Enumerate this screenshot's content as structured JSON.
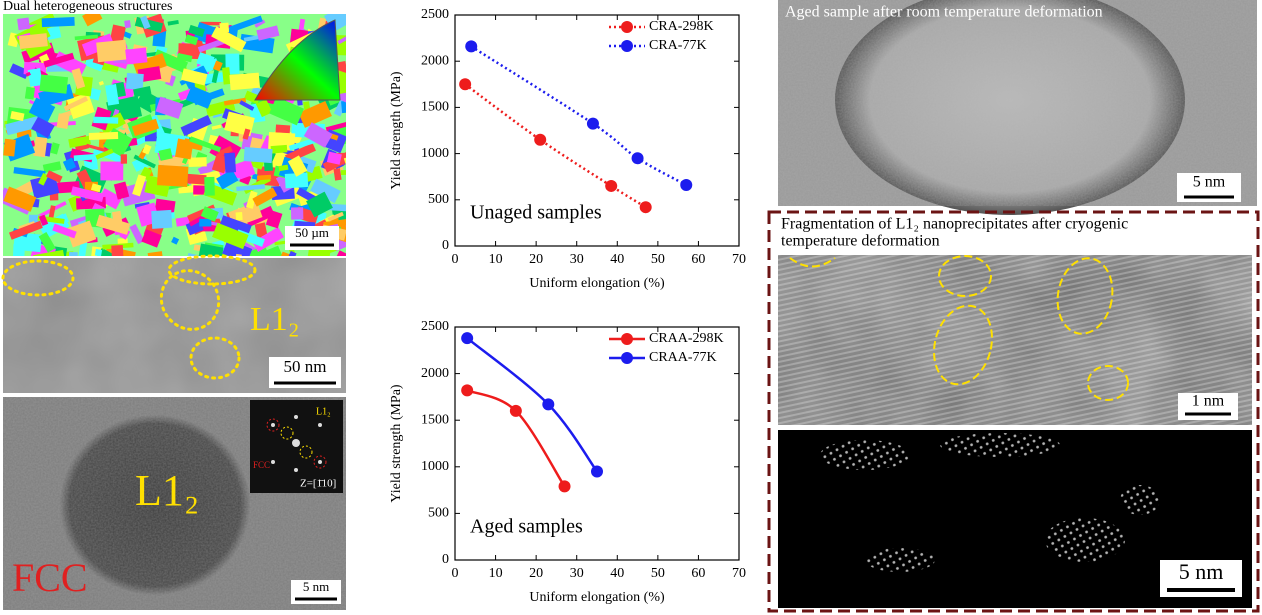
{
  "panels": {
    "ebsd_title": "Dual heterogeneous structures",
    "ebsd_scale": "50 µm",
    "tem_label": "L1₂",
    "tem_scale": "50 nm",
    "hr_label": "L1₂",
    "hr_fcc": "FCC",
    "hr_scale": "5 nm",
    "saed_l12": "L1₂",
    "saed_fcc": "FCC",
    "saed_zone": "Z=[1̄10]",
    "rt_caption": "Aged sample after room temperature deformation",
    "rt_scale": "5 nm",
    "cryo_caption_lines": [
      "Fragmentation of L1₂ nanoprecipitates after cryogenic",
      "temperature deformation"
    ],
    "cryo_scale": "1 nm",
    "fft_scale": "5 nm"
  },
  "chart_data": [
    {
      "type": "line",
      "annotation": "Unaged samples",
      "xlabel": "Uniform elongation (%)",
      "ylabel": "Yield strength (MPa)",
      "xlim": [
        0,
        70
      ],
      "xticks": [
        0,
        10,
        20,
        30,
        40,
        50,
        60,
        70
      ],
      "ylim": [
        0,
        2500
      ],
      "yticks": [
        0,
        500,
        1000,
        1500,
        2000,
        2500
      ],
      "line_style": "dotted",
      "legend": "upper right",
      "series": [
        {
          "name": "CRA-298K",
          "color": "#ee1c1c",
          "x": [
            2.5,
            21,
            38.5,
            47
          ],
          "values": [
            1750,
            1150,
            650,
            420
          ]
        },
        {
          "name": "CRA-77K",
          "color": "#1c1cee",
          "x": [
            4,
            34,
            45,
            57
          ],
          "values": [
            2160,
            1325,
            950,
            660
          ]
        }
      ]
    },
    {
      "type": "line",
      "annotation": "Aged samples",
      "xlabel": "Uniform elongation (%)",
      "ylabel": "Yield strength (MPa)",
      "xlim": [
        0,
        70
      ],
      "xticks": [
        0,
        10,
        20,
        30,
        40,
        50,
        60,
        70
      ],
      "ylim": [
        0,
        2500
      ],
      "yticks": [
        0,
        500,
        1000,
        1500,
        2000,
        2500
      ],
      "line_style": "solid",
      "legend": "upper right",
      "series": [
        {
          "name": "CRAA-298K",
          "color": "#ee1c1c",
          "x": [
            3,
            15,
            27
          ],
          "values": [
            1820,
            1600,
            790
          ]
        },
        {
          "name": "CRAA-77K",
          "color": "#1c1cee",
          "x": [
            3,
            23,
            35
          ],
          "values": [
            2380,
            1670,
            950
          ]
        }
      ]
    }
  ]
}
